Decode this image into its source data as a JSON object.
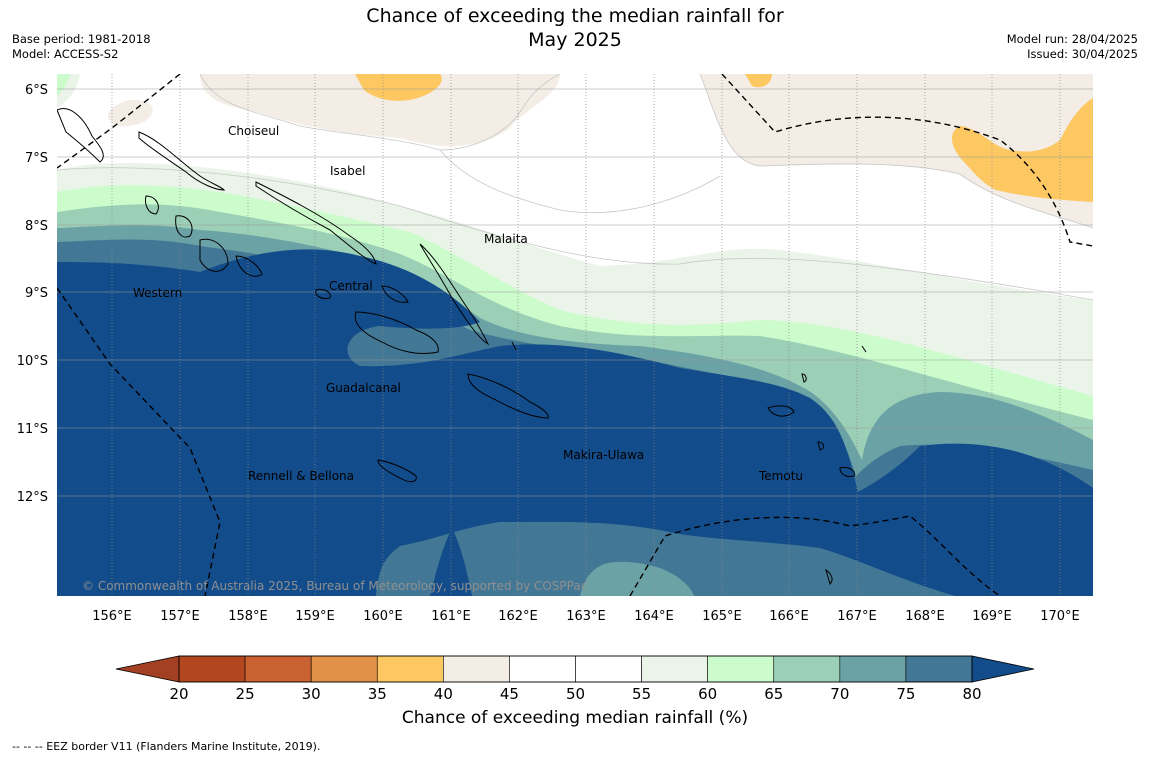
{
  "title": {
    "line1": "Chance of exceeding the median rainfall for",
    "line2": "May 2025"
  },
  "meta_left": {
    "base_period": "Base period: 1981-2018",
    "model": "Model: ACCESS-S2"
  },
  "meta_right": {
    "model_run": "Model run: 28/04/2025",
    "issued": "Issued: 30/04/2025"
  },
  "map": {
    "lat_labels": [
      "6°S",
      "7°S",
      "8°S",
      "9°S",
      "10°S",
      "11°S",
      "12°S"
    ],
    "lon_labels": [
      "156°E",
      "157°E",
      "158°E",
      "159°E",
      "160°E",
      "161°E",
      "162°E",
      "163°E",
      "164°E",
      "165°E",
      "166°E",
      "167°E",
      "168°E",
      "169°E",
      "170°E"
    ],
    "region_labels": [
      "Choiseul",
      "Isabel",
      "Malaita",
      "Western",
      "Central",
      "Guadalcanal",
      "Makira-Ulawa",
      "Rennell & Bellona",
      "Temotu"
    ],
    "copyright": "© Commonwealth of Australia 2025, Bureau of Meteorology, supported by COSPPac"
  },
  "colorbar": {
    "colors": [
      "#a33f22",
      "#b2461f",
      "#cb6231",
      "#e29149",
      "#fdc862",
      "#f3ede6",
      "#ffffff",
      "#ffffff",
      "#eaf4e8",
      "#ccfccc",
      "#9bcfb6",
      "#6ba2a5",
      "#427895",
      "#134c8b"
    ],
    "tick_labels": [
      "20",
      "25",
      "30",
      "35",
      "40",
      "45",
      "50",
      "55",
      "60",
      "65",
      "70",
      "75",
      "80"
    ],
    "label": "Chance of exceeding median rainfall (%)"
  },
  "footnote": "--  --  -- EEZ border V11 (Flanders Marine Institute, 2019)."
}
